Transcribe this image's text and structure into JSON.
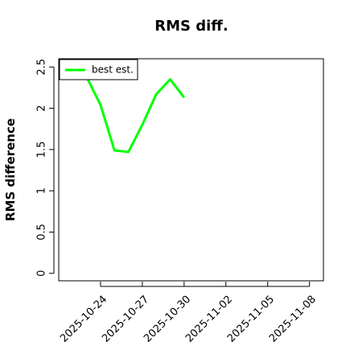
{
  "chart_data": {
    "type": "line",
    "title": "RMS diff.",
    "y_label": "RMS difference",
    "x": [
      "2025-10-23",
      "2025-10-24",
      "2025-10-25",
      "2025-10-26",
      "2025-10-27",
      "2025-10-28",
      "2025-10-29",
      "2025-10-30"
    ],
    "series": [
      {
        "name": "best est.",
        "color": "#00ff00",
        "values": [
          2.38,
          2.04,
          1.49,
          1.47,
          1.8,
          2.17,
          2.35,
          2.13
        ]
      }
    ],
    "xlim": [
      "2025-10-21",
      "2025-11-09"
    ],
    "xticks": [
      "2025-10-24",
      "2025-10-27",
      "2025-10-30",
      "2025-11-02",
      "2025-11-05",
      "2025-11-08"
    ],
    "ylim": [
      -0.09,
      2.6
    ],
    "yticks": [
      0.0,
      0.5,
      1.0,
      1.5,
      2.0,
      2.5
    ],
    "legend": "upper-left"
  }
}
